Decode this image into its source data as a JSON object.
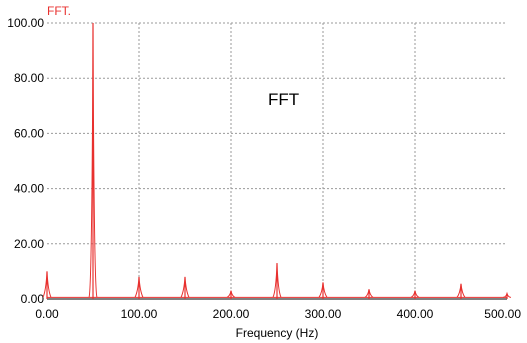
{
  "chart_data": {
    "type": "line",
    "series_label": "FFT.",
    "annotation": "FFT",
    "xlabel": "Frequency (Hz)",
    "ylabel": "",
    "xlim": [
      0,
      500
    ],
    "ylim": [
      0,
      100
    ],
    "x_ticks": [
      "0.00",
      "100.00",
      "200.00",
      "300.00",
      "400.00",
      "500.00"
    ],
    "y_ticks": [
      "0.00",
      "20.00",
      "40.00",
      "60.00",
      "80.00",
      "100.00"
    ],
    "grid": true,
    "series": [
      {
        "color": "#e8312f",
        "peaks": [
          {
            "x": 0,
            "y": 10
          },
          {
            "x": 50,
            "y": 100
          },
          {
            "x": 100,
            "y": 8
          },
          {
            "x": 150,
            "y": 8
          },
          {
            "x": 200,
            "y": 3
          },
          {
            "x": 250,
            "y": 13
          },
          {
            "x": 300,
            "y": 6
          },
          {
            "x": 350,
            "y": 3.5
          },
          {
            "x": 400,
            "y": 3
          },
          {
            "x": 450,
            "y": 5.5
          },
          {
            "x": 500,
            "y": 2
          }
        ]
      }
    ]
  }
}
